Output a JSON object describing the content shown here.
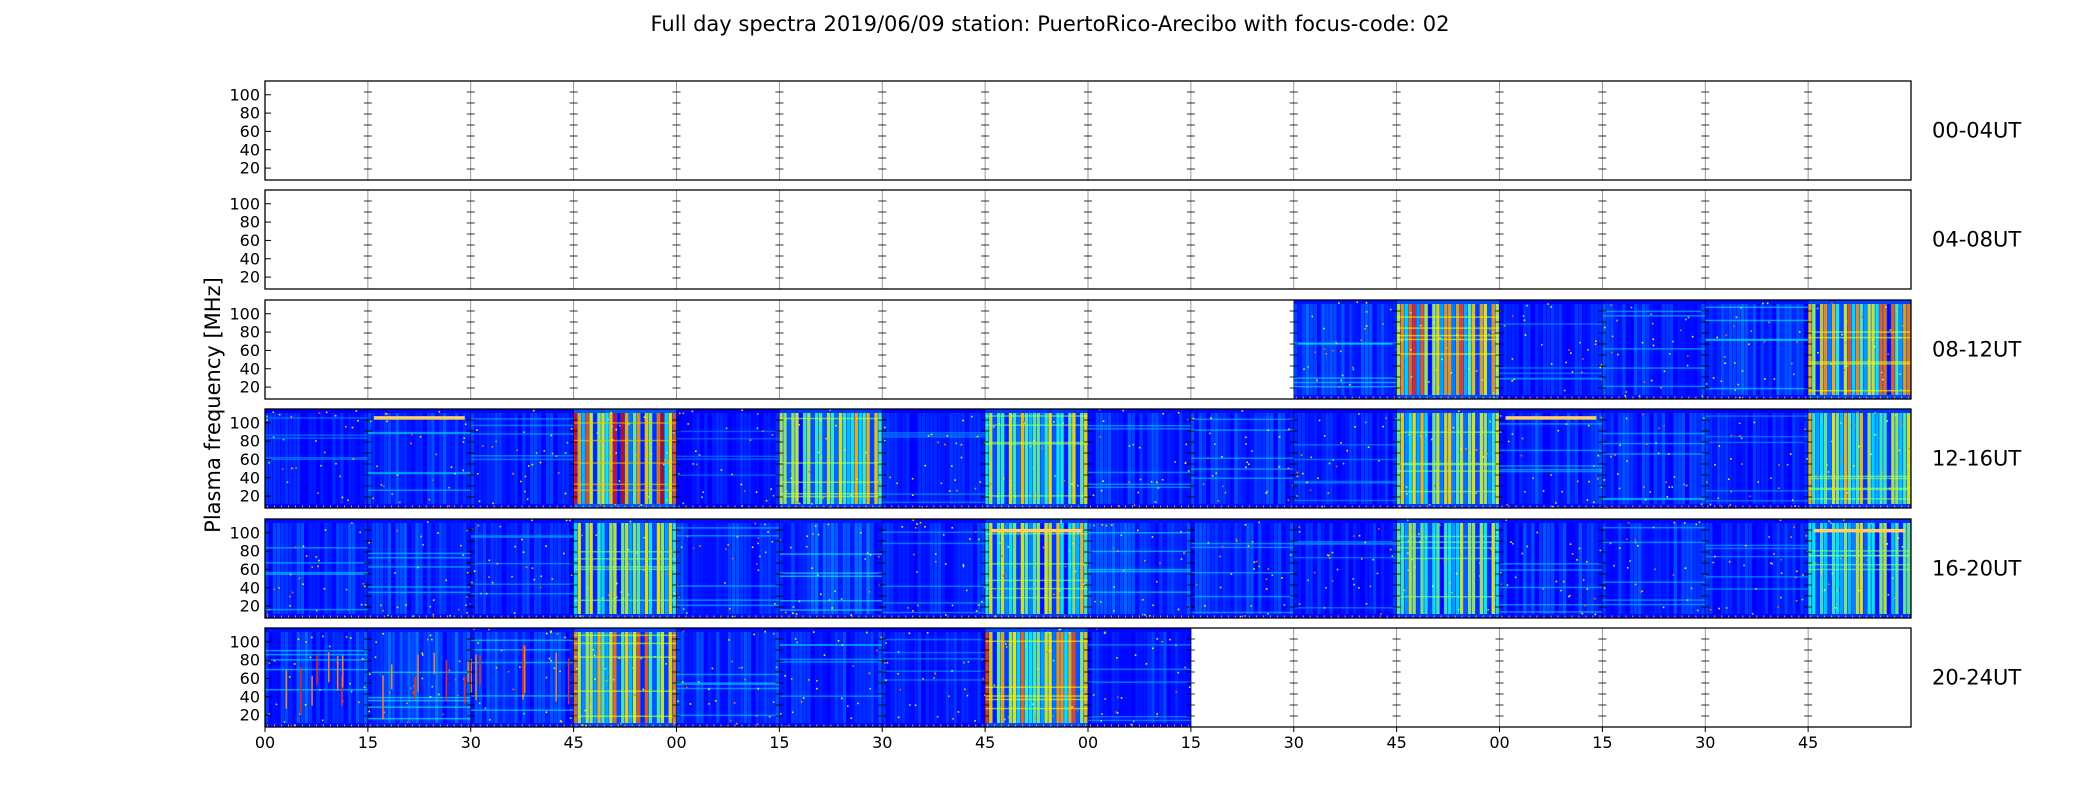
{
  "chart_data": {
    "type": "heatmap",
    "title": "Full day spectra 2019/06/09 station: PuertoRico-Arecibo with focus-code: 02",
    "ylabel": "Plasma frequency [MHz]",
    "y_ticks": [
      "20",
      "40",
      "60",
      "80",
      "100"
    ],
    "x_ticks": [
      "00",
      "15",
      "30",
      "45",
      "00",
      "15",
      "30",
      "45",
      "00",
      "15",
      "30",
      "45",
      "00",
      "15",
      "30",
      "45"
    ],
    "colormap": "jet",
    "segments_per_row": 16,
    "segment_minutes": 15,
    "rows": [
      {
        "label": "00-04UT",
        "levels": [
          null,
          null,
          null,
          null,
          null,
          null,
          null,
          null,
          null,
          null,
          null,
          null,
          null,
          null,
          null,
          null
        ]
      },
      {
        "label": "04-08UT",
        "levels": [
          null,
          null,
          null,
          null,
          null,
          null,
          null,
          null,
          null,
          null,
          null,
          null,
          null,
          null,
          null,
          null
        ]
      },
      {
        "label": "08-12UT",
        "levels": [
          null,
          null,
          null,
          null,
          null,
          null,
          null,
          null,
          null,
          null,
          0.35,
          0.8,
          0.22,
          0.3,
          0.35,
          0.75
        ]
      },
      {
        "label": "12-16UT",
        "levels": [
          0.2,
          0.3,
          0.25,
          0.9,
          0.18,
          0.7,
          0.22,
          0.65,
          0.28,
          0.3,
          0.22,
          0.65,
          0.3,
          0.3,
          0.22,
          0.65
        ]
      },
      {
        "label": "16-20UT",
        "levels": [
          0.3,
          0.32,
          0.25,
          0.6,
          0.3,
          0.4,
          0.25,
          0.65,
          0.35,
          0.3,
          0.22,
          0.6,
          0.3,
          0.28,
          0.25,
          0.6
        ]
      },
      {
        "label": "20-24UT",
        "levels": [
          0.35,
          0.4,
          0.35,
          0.75,
          0.3,
          0.28,
          0.22,
          0.8,
          0.25,
          null,
          null,
          null,
          null,
          null,
          null,
          null
        ]
      }
    ],
    "band_highlights": [
      {
        "row": 3,
        "segment": 1,
        "freq": 105
      },
      {
        "row": 3,
        "segment": 12,
        "freq": 105
      },
      {
        "row": 4,
        "segment": 7,
        "freq": 102
      },
      {
        "row": 4,
        "segment": 15,
        "freq": 102
      }
    ],
    "spike_segments": [
      {
        "row": 5,
        "segment": 0
      },
      {
        "row": 5,
        "segment": 1
      },
      {
        "row": 5,
        "segment": 2
      }
    ],
    "grid": false,
    "legend": "none"
  }
}
